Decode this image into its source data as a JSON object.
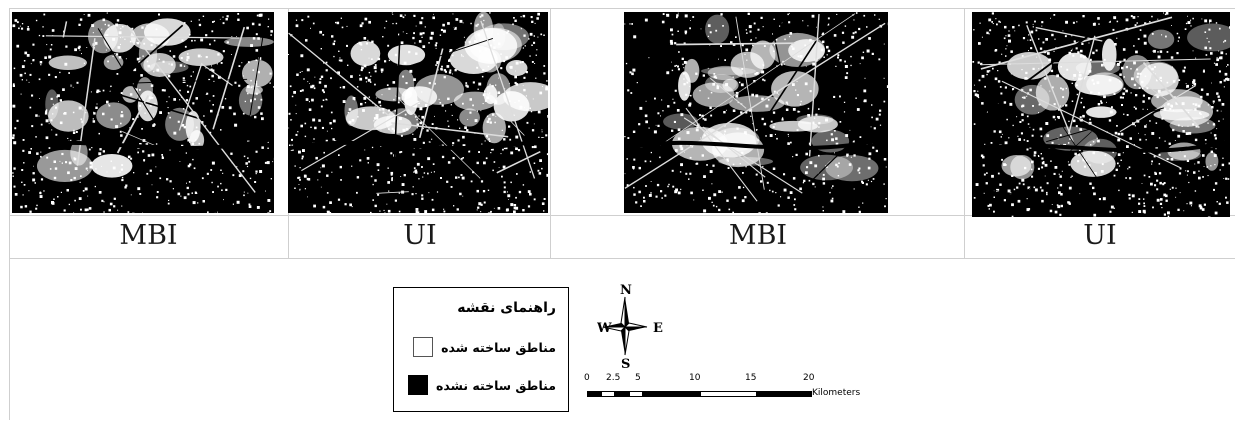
{
  "captions": [
    "MBI",
    "UI",
    "MBI",
    "UI"
  ],
  "legend": {
    "title": "راهنمای نقشه",
    "items": [
      {
        "label": "مناطق ساخته شده",
        "color": "#ffffff"
      },
      {
        "label": "مناطق ساخته نشده",
        "color": "#000000"
      }
    ]
  },
  "compass": {
    "north": "N",
    "south": "S",
    "east": "E",
    "west": "W"
  },
  "scale": {
    "ticks": [
      "0",
      "2.5",
      "5",
      "10",
      "15",
      "20"
    ],
    "unit": "Kilometers"
  },
  "map_images": [
    {
      "name": "map-mbi-1",
      "brightness": 0.42
    },
    {
      "name": "map-ui-1",
      "brightness": 0.48
    },
    {
      "name": "map-mbi-2",
      "brightness": 0.36
    },
    {
      "name": "map-ui-2",
      "brightness": 0.52
    }
  ]
}
